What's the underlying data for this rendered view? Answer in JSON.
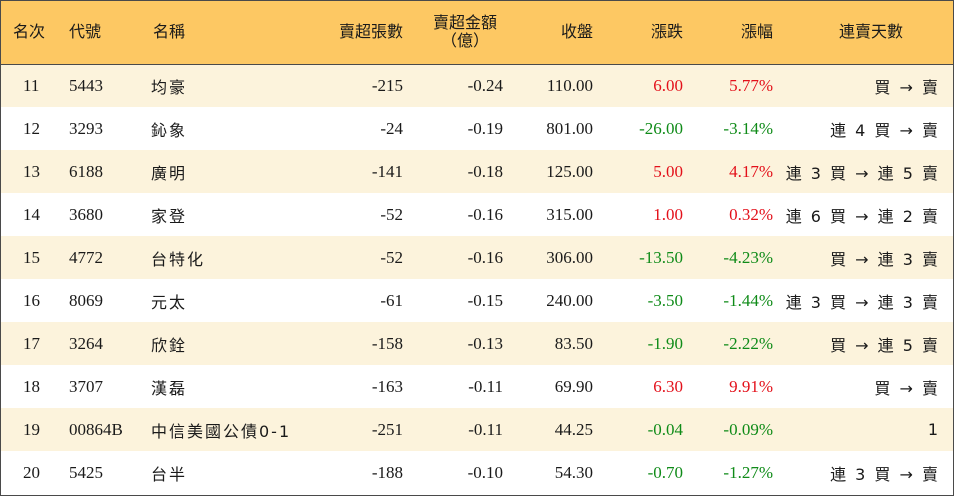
{
  "colors": {
    "header_bg": "#fdc863",
    "stripe_bg": "#fcf3dc",
    "up": "#e3101a",
    "down": "#0f8b18"
  },
  "headers": {
    "rank": "名次",
    "code": "代號",
    "name": "名稱",
    "vol": "賣超張數",
    "amt_line1": "賣超金額",
    "amt_line2": "（億）",
    "close": "收盤",
    "chg": "漲跌",
    "pct": "漲幅",
    "days": "連賣天數"
  },
  "rows": [
    {
      "rank": "11",
      "code": "5443",
      "name": "均豪",
      "vol": "-215",
      "amt": "-0.24",
      "close": "110.00",
      "chg": "6.00",
      "pct": "5.77%",
      "dir": "up",
      "days": "買 → 賣"
    },
    {
      "rank": "12",
      "code": "3293",
      "name": "鈊象",
      "vol": "-24",
      "amt": "-0.19",
      "close": "801.00",
      "chg": "-26.00",
      "pct": "-3.14%",
      "dir": "down",
      "days": "連 4 買 → 賣"
    },
    {
      "rank": "13",
      "code": "6188",
      "name": "廣明",
      "vol": "-141",
      "amt": "-0.18",
      "close": "125.00",
      "chg": "5.00",
      "pct": "4.17%",
      "dir": "up",
      "days": "連 3 買 → 連 5 賣"
    },
    {
      "rank": "14",
      "code": "3680",
      "name": "家登",
      "vol": "-52",
      "amt": "-0.16",
      "close": "315.00",
      "chg": "1.00",
      "pct": "0.32%",
      "dir": "up",
      "days": "連 6 買 → 連 2 賣"
    },
    {
      "rank": "15",
      "code": "4772",
      "name": "台特化",
      "vol": "-52",
      "amt": "-0.16",
      "close": "306.00",
      "chg": "-13.50",
      "pct": "-4.23%",
      "dir": "down",
      "days": "買 → 連 3 賣"
    },
    {
      "rank": "16",
      "code": "8069",
      "name": "元太",
      "vol": "-61",
      "amt": "-0.15",
      "close": "240.00",
      "chg": "-3.50",
      "pct": "-1.44%",
      "dir": "down",
      "days": "連 3 買 → 連 3 賣"
    },
    {
      "rank": "17",
      "code": "3264",
      "name": "欣銓",
      "vol": "-158",
      "amt": "-0.13",
      "close": "83.50",
      "chg": "-1.90",
      "pct": "-2.22%",
      "dir": "down",
      "days": "買 → 連 5 賣"
    },
    {
      "rank": "18",
      "code": "3707",
      "name": "漢磊",
      "vol": "-163",
      "amt": "-0.11",
      "close": "69.90",
      "chg": "6.30",
      "pct": "9.91%",
      "dir": "up",
      "days": "買 → 賣"
    },
    {
      "rank": "19",
      "code": "00864B",
      "name": "中信美國公債0-1",
      "vol": "-251",
      "amt": "-0.11",
      "close": "44.25",
      "chg": "-0.04",
      "pct": "-0.09%",
      "dir": "down",
      "days": "1"
    },
    {
      "rank": "20",
      "code": "5425",
      "name": "台半",
      "vol": "-188",
      "amt": "-0.10",
      "close": "54.30",
      "chg": "-0.70",
      "pct": "-1.27%",
      "dir": "down",
      "days": "連 3 買 → 賣"
    }
  ]
}
